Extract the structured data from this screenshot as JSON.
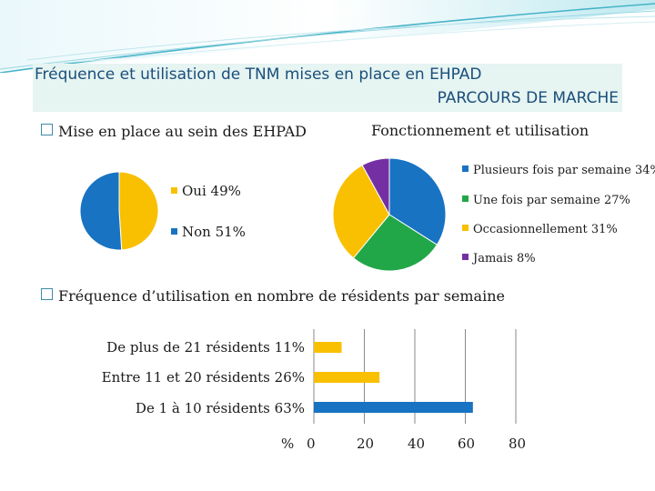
{
  "colors": {
    "blue": "#1873c2",
    "yellow": "#f8c000",
    "green": "#22a748",
    "purple": "#7430a3",
    "teal": "#4fb3c6"
  },
  "title": {
    "line1": "Fréquence et utilisation de TNM mises en place en EHPAD",
    "line2": "PARCOURS DE MARCHE"
  },
  "section1": {
    "heading": "Mise en place au sein des EHPAD"
  },
  "section2": {
    "heading": "Fonctionnement et utilisation"
  },
  "section3": {
    "heading": "Fréquence d’utilisation en nombre de résidents par semaine"
  },
  "chart_data": [
    {
      "type": "pie",
      "title": "Mise en place au sein des EHPAD",
      "slices": [
        {
          "label": "Oui 49%",
          "value": 49,
          "color": "#f8c000"
        },
        {
          "label": "Non 51%",
          "value": 51,
          "color": "#1873c2"
        }
      ]
    },
    {
      "type": "pie",
      "title": "Fonctionnement et utilisation",
      "slices": [
        {
          "label": "Plusieurs fois par semaine 34%",
          "value": 34,
          "color": "#1873c2"
        },
        {
          "label": "Une fois par semaine 27%",
          "value": 27,
          "color": "#22a748"
        },
        {
          "label": "Occasionnellement 31%",
          "value": 31,
          "color": "#f8c000"
        },
        {
          "label": "Jamais 8%",
          "value": 8,
          "color": "#7430a3"
        }
      ]
    },
    {
      "type": "bar",
      "orientation": "horizontal",
      "title": "Fréquence d’utilisation en nombre de résidents par semaine",
      "categories": [
        "De plus de 21 résidents 11%",
        "Entre 11 et 20 résidents 26%",
        "De 1 à 10 résidents 63%"
      ],
      "values": [
        11,
        26,
        63
      ],
      "colors": [
        "#f8c000",
        "#f8c000",
        "#1873c2"
      ],
      "xlim": [
        0,
        80
      ],
      "xticks": [
        "0",
        "20",
        "40",
        "60",
        "80"
      ],
      "xlabel": "%"
    }
  ]
}
